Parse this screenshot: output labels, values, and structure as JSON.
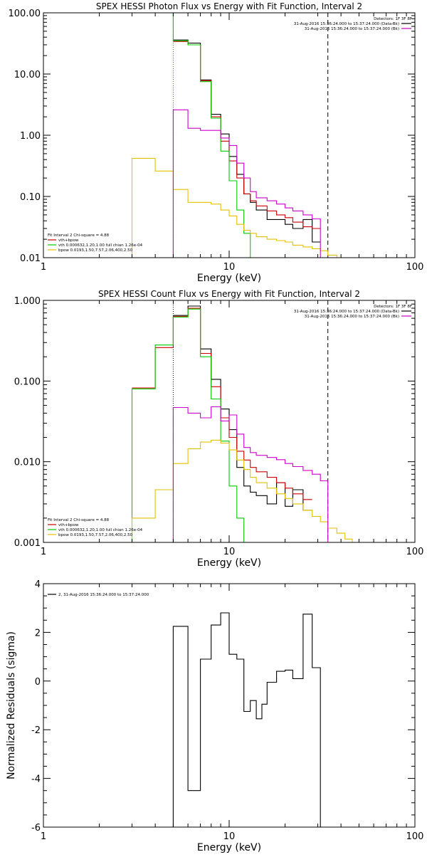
{
  "colors": {
    "total": "#000000",
    "vthbpow": "#cc0000",
    "vth": "#00cc00",
    "bpow": "#e6c000",
    "bk": "#cc00cc"
  },
  "chart_data": [
    {
      "type": "line",
      "title": "SPEX HESSI Photon Flux vs Energy with Fit Function, Interval 2",
      "xlabel": "Energy (keV)",
      "ylabel": "",
      "xscale": "log",
      "yscale": "log",
      "xlim": [
        1,
        100
      ],
      "ylim": [
        0.01,
        100
      ],
      "xticks": [
        "1",
        "10",
        "100"
      ],
      "yticks": [
        "0.01",
        "0.10",
        "1.00",
        "10.00",
        "100.00"
      ],
      "ytick_values": [
        0.01,
        0.1,
        1,
        10,
        100
      ],
      "legend_right": [
        {
          "text": "Detectors: 1F 3F 8F",
          "color": ""
        },
        {
          "text": "31-Aug-2016 15:36:24.000 to 15:37:24.000 (Data-Bk)",
          "color": "#000000"
        },
        {
          "text": "31-Aug-2016 15:36:24.000 to 15:37:24.000 (Bk)",
          "color": "#cc00cc"
        }
      ],
      "legend_left_header": "Fit Interval 2   Chi-square = 4.88",
      "legend_left": [
        {
          "text": "vth+bpow",
          "color": "#cc0000"
        },
        {
          "text": "vth 0.000632,1.20,1.00   full chian 1.26e-04",
          "color": "#00cc00"
        },
        {
          "text": "bpow 0.0193,1.50,7.57,2.06,400,2.50",
          "color": "#e6c000"
        }
      ],
      "vlines": [
        {
          "x": 5.0,
          "color": "#00aa00",
          "style": "dotted"
        },
        {
          "x": 34,
          "color": "#000000",
          "style": "dashed"
        }
      ],
      "edges": [
        3,
        4,
        5,
        6,
        7,
        8,
        9,
        10,
        11,
        12,
        13,
        14,
        16,
        18,
        20,
        22,
        25,
        28,
        31,
        34,
        38,
        42,
        46
      ],
      "series": [
        {
          "key": "total",
          "color": "#000000",
          "start": 2,
          "values": [
            36,
            32,
            8,
            2.2,
            1.05,
            0.45,
            0.23,
            0.11,
            0.08,
            0.06,
            0.042,
            0.042,
            0.035,
            0.03,
            0.042,
            0.018
          ]
        },
        {
          "key": "vthbpow",
          "color": "#cc0000",
          "start": 2,
          "values": [
            34,
            30,
            7.8,
            2.0,
            0.8,
            0.38,
            0.2,
            0.11,
            0.085,
            0.07,
            0.058,
            0.05,
            0.045,
            0.038,
            0.032,
            0.03
          ]
        },
        {
          "key": "vth",
          "color": "#00cc00",
          "start": 0,
          "vstart": 120,
          "vend": 0.005,
          "values": [
            120,
            120,
            35,
            30,
            7.5,
            1.9,
            0.55,
            0.18,
            0.06,
            0.025,
            0.009
          ]
        },
        {
          "key": "bpow",
          "color": "#e6c000",
          "start": 0,
          "vstart": 0.005,
          "vend": 0.005,
          "values": [
            0.42,
            0.26,
            0.13,
            0.08,
            0.08,
            0.075,
            0.06,
            0.048,
            0.035,
            0.028,
            0.025,
            0.022,
            0.02,
            0.019,
            0.018,
            0.016,
            0.015,
            0.014,
            0.013,
            0.011,
            0.01,
            0.009
          ]
        },
        {
          "key": "bk",
          "color": "#cc00cc",
          "start": 2,
          "vstart": 0.005,
          "vend": 0.005,
          "values": [
            2.6,
            1.3,
            1.2,
            1.2,
            0.9,
            0.68,
            0.35,
            0.2,
            0.12,
            0.095,
            0.085,
            0.075,
            0.065,
            0.058,
            0.05,
            0.043
          ]
        }
      ]
    },
    {
      "type": "line",
      "title": "SPEX HESSI Count Flux vs Energy with Fit Function, Interval 2",
      "xlabel": "Energy (keV)",
      "ylabel": "",
      "xscale": "log",
      "yscale": "log",
      "xlim": [
        1,
        100
      ],
      "ylim": [
        0.001,
        1
      ],
      "xticks": [
        "1",
        "10",
        "100"
      ],
      "yticks": [
        "0.001",
        "0.010",
        "0.100",
        "1.000"
      ],
      "ytick_values": [
        0.001,
        0.01,
        0.1,
        1
      ],
      "legend_right": [
        {
          "text": "Detectors: 1F 3F 8F",
          "color": ""
        },
        {
          "text": "31-Aug-2016 15:36:24.000 to 15:37:24.000 (Data-Bk)",
          "color": "#000000"
        },
        {
          "text": "31-Aug-2016 15:36:24.000 to 15:37:24.000 (Bk)",
          "color": "#cc00cc"
        }
      ],
      "legend_left_header": "Fit Interval 2   Chi-square = 4.88",
      "legend_left": [
        {
          "text": "vth+bpow",
          "color": "#cc0000"
        },
        {
          "text": "vth 0.000632,1.20,1.00   full chian 1.26e-04",
          "color": "#00cc00"
        },
        {
          "text": "bpow 0.0193,1.50,7.57,2.06,400,2.50",
          "color": "#e6c000"
        }
      ],
      "vlines": [
        {
          "x": 5.0,
          "color": "#000000",
          "style": "dotted"
        },
        {
          "x": 34,
          "color": "#000000",
          "style": "dashed"
        }
      ],
      "edges": [
        3,
        4,
        5,
        6,
        7,
        8,
        9,
        10,
        11,
        12,
        13,
        14,
        16,
        18,
        20,
        22,
        25,
        28,
        31,
        34,
        38,
        42,
        46,
        50,
        55
      ],
      "series": [
        {
          "key": "total",
          "color": "#000000",
          "start": 2,
          "values": [
            0.65,
            0.85,
            0.25,
            0.105,
            0.045,
            0.025,
            0.0085,
            0.005,
            0.0042,
            0.0038,
            0.003,
            0.0055,
            0.0028,
            0.0045,
            0.0025
          ]
        },
        {
          "key": "vthbpow",
          "color": "#cc0000",
          "start": 0,
          "values": [
            0.082,
            0.26,
            0.63,
            0.8,
            0.22,
            0.085,
            0.035,
            0.02,
            0.0135,
            0.0105,
            0.0085,
            0.0075,
            0.0064,
            0.0055,
            0.0047,
            0.004,
            0.0034
          ]
        },
        {
          "key": "vth",
          "color": "#00cc00",
          "start": 0,
          "vstart": 0.0005,
          "vend": 0.0005,
          "values": [
            0.08,
            0.28,
            0.62,
            0.78,
            0.2,
            0.06,
            0.018,
            0.005,
            0.002,
            0.0009,
            0.0005
          ]
        },
        {
          "key": "bpow",
          "color": "#e6c000",
          "start": 0,
          "vstart": 0.0005,
          "vend": 0.0005,
          "values": [
            0.002,
            0.0045,
            0.0095,
            0.0145,
            0.0175,
            0.0185,
            0.017,
            0.014,
            0.0105,
            0.008,
            0.0064,
            0.0055,
            0.0047,
            0.004,
            0.0035,
            0.003,
            0.0025,
            0.0021,
            0.0018,
            0.0015,
            0.0013,
            0.0011,
            0.00095,
            0.0008
          ]
        },
        {
          "key": "bk",
          "color": "#cc00cc",
          "start": 2,
          "vstart": 0.0005,
          "vend": 0.0005,
          "values": [
            0.047,
            0.04,
            0.035,
            0.048,
            0.032,
            0.038,
            0.022,
            0.015,
            0.013,
            0.012,
            0.0113,
            0.0106,
            0.0095,
            0.0087,
            0.0078,
            0.007,
            0.0058
          ]
        }
      ]
    },
    {
      "type": "line",
      "title": "",
      "xlabel": "Energy (keV)",
      "ylabel": "Normalized Residuals (sigma)",
      "xscale": "log",
      "yscale": "linear",
      "xlim": [
        1,
        100
      ],
      "ylim": [
        -6,
        4
      ],
      "xticks": [
        "1",
        "10",
        "100"
      ],
      "yticks": [
        "-6",
        "-4",
        "-2",
        "0",
        "2",
        "4"
      ],
      "ytick_values": [
        -6,
        -4,
        -2,
        0,
        2,
        4
      ],
      "legend_right": [],
      "legend_left_header": "",
      "legend_left": [
        {
          "text": "2, 31-Aug-2016 15:36:24.000 to 15:37:24.000",
          "color": "#000000"
        }
      ],
      "vlines": [],
      "edges": [
        5,
        6,
        7,
        8,
        9,
        10,
        11,
        12,
        13,
        14,
        15,
        16,
        18,
        20,
        22,
        25,
        28,
        31,
        34
      ],
      "series": [
        {
          "key": "resid",
          "color": "#000000",
          "start": 0,
          "vstart": -6,
          "vend": -6,
          "values": [
            2.25,
            -4.5,
            0.9,
            2.3,
            2.8,
            1.1,
            0.9,
            -1.25,
            -0.8,
            -1.55,
            -0.95,
            -0.05,
            0.4,
            0.45,
            0.1,
            2.75,
            0.55
          ]
        }
      ]
    }
  ]
}
